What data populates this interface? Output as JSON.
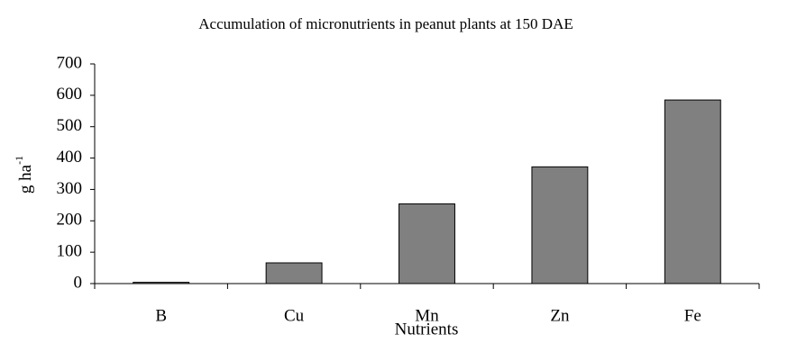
{
  "chart_data": {
    "type": "bar",
    "title": "Accumulation of micronutrients in peanut plants at 150 DAE",
    "x_label": "Nutrients",
    "y_label": "g ha",
    "y_label_superscript": "-1",
    "categories": [
      "B",
      "Cu",
      "Mn",
      "Zn",
      "Fe"
    ],
    "values": [
      4,
      66,
      254,
      372,
      585
    ],
    "color": "#808080",
    "ylim": [
      0,
      700
    ],
    "yticks": [
      0,
      100,
      200,
      300,
      400,
      500,
      600,
      700
    ],
    "grid": false
  }
}
